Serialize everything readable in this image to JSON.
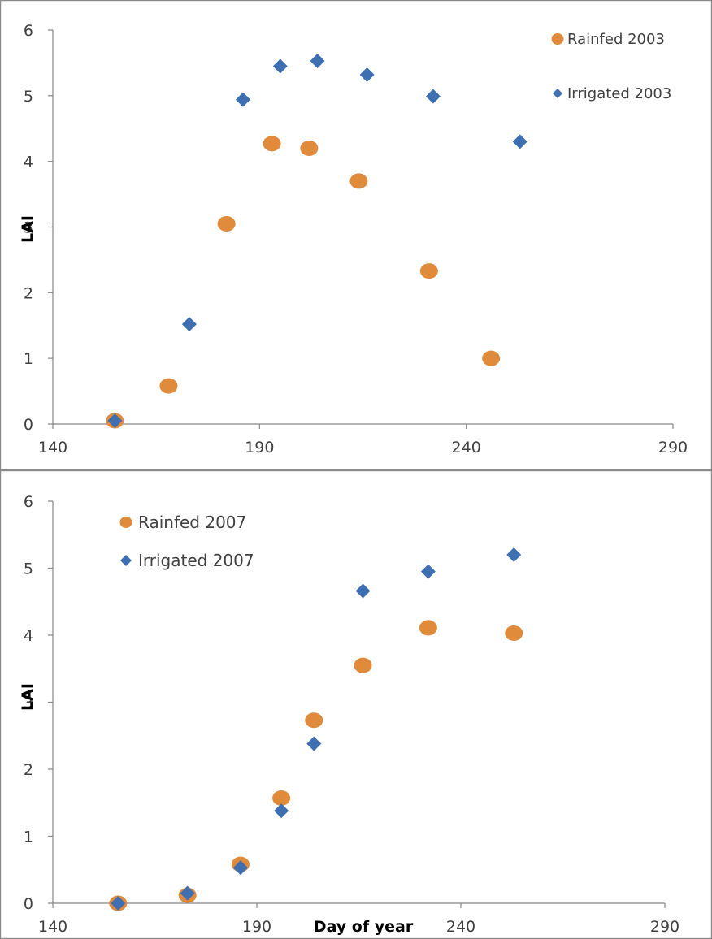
{
  "chart_data": [
    {
      "type": "scatter",
      "title": "",
      "xlabel": "",
      "ylabel": "LAI",
      "xlim": [
        140,
        290
      ],
      "ylim": [
        0,
        6
      ],
      "x_ticks": [
        140,
        190,
        240,
        290
      ],
      "y_ticks": [
        0,
        1,
        2,
        3,
        4,
        5,
        6
      ],
      "grid": false,
      "legend_position": "top-right",
      "series": [
        {
          "name": "Rainfed 2003",
          "marker": "circle",
          "color": "#E08A3C",
          "x": [
            155,
            168,
            182,
            193,
            202,
            214,
            231,
            246
          ],
          "y": [
            0.05,
            0.58,
            3.05,
            4.27,
            4.2,
            3.7,
            2.33,
            1.0
          ]
        },
        {
          "name": "Irrigated 2003",
          "marker": "diamond",
          "color": "#3E6FB0",
          "x": [
            155,
            173,
            186,
            195,
            204,
            216,
            232,
            253
          ],
          "y": [
            0.05,
            1.52,
            4.94,
            5.45,
            5.53,
            5.32,
            4.99,
            4.3
          ]
        }
      ]
    },
    {
      "type": "scatter",
      "title": "",
      "xlabel": "Day of year",
      "ylabel": "LAI",
      "xlim": [
        140,
        290
      ],
      "ylim": [
        0,
        6
      ],
      "x_ticks": [
        140,
        190,
        240,
        290
      ],
      "y_ticks": [
        0,
        1,
        2,
        3,
        4,
        5,
        6
      ],
      "grid": false,
      "legend_position": "top-left",
      "series": [
        {
          "name": "Rainfed 2007",
          "marker": "circle",
          "color": "#E08A3C",
          "x": [
            156,
            173,
            186,
            196,
            204,
            216,
            232,
            253
          ],
          "y": [
            0.0,
            0.12,
            0.58,
            1.57,
            2.73,
            3.55,
            4.11,
            4.03
          ]
        },
        {
          "name": "Irrigated 2007",
          "marker": "diamond",
          "color": "#3E6FB0",
          "x": [
            156,
            173,
            186,
            196,
            204,
            216,
            232,
            253
          ],
          "y": [
            0.0,
            0.15,
            0.53,
            1.38,
            2.38,
            4.66,
            4.95,
            5.2
          ]
        }
      ]
    }
  ]
}
